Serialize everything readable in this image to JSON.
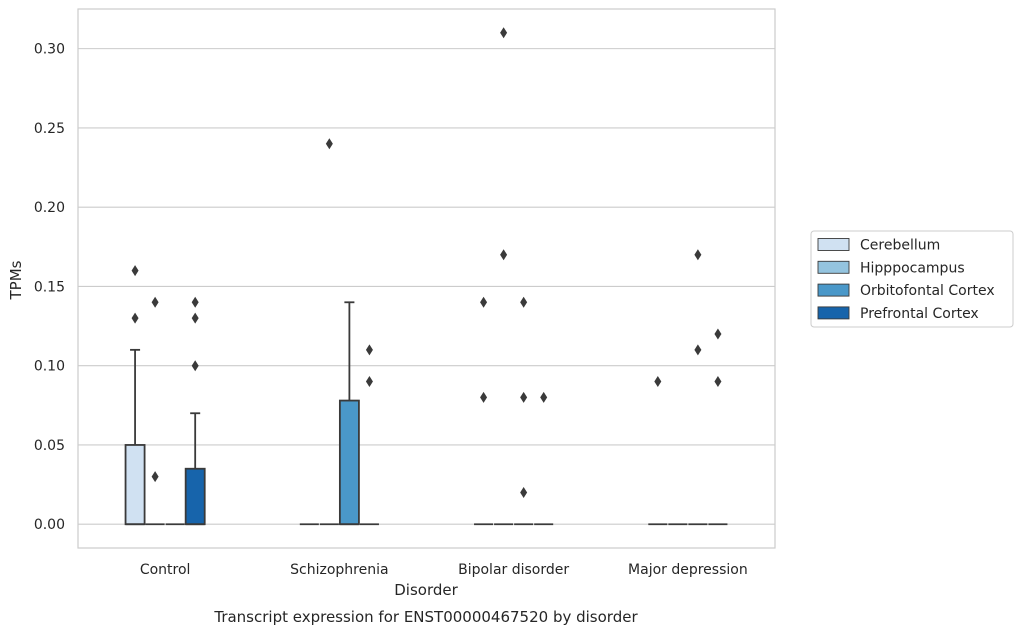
{
  "chart_data": {
    "type": "box",
    "title": "Transcript expression for ENST00000467520 by disorder",
    "xlabel": "Disorder",
    "ylabel": "TPMs",
    "ylim": [
      -0.015,
      0.325
    ],
    "yticks": [
      0.0,
      0.05,
      0.1,
      0.15,
      0.2,
      0.25,
      0.3
    ],
    "ytick_labels": [
      "0.00",
      "0.05",
      "0.10",
      "0.15",
      "0.20",
      "0.25",
      "0.30"
    ],
    "grid": "horizontal",
    "legend_position": "right",
    "categories": [
      "Control",
      "Schizophrenia",
      "Bipolar disorder",
      "Major depression"
    ],
    "series": [
      {
        "name": "Cerebellum",
        "color": "#d0e1f2",
        "boxes": [
          {
            "q1": 0.0,
            "median": 0.0,
            "q3": 0.05,
            "whisker_low": 0.0,
            "whisker_high": 0.11,
            "outliers": [
              0.13,
              0.16
            ]
          },
          {
            "q1": 0.0,
            "median": 0.0,
            "q3": 0.0,
            "whisker_low": 0.0,
            "whisker_high": 0.0,
            "outliers": []
          },
          {
            "q1": 0.0,
            "median": 0.0,
            "q3": 0.0,
            "whisker_low": 0.0,
            "whisker_high": 0.0,
            "outliers": [
              0.14,
              0.08
            ]
          },
          {
            "q1": 0.0,
            "median": 0.0,
            "q3": 0.0,
            "whisker_low": 0.0,
            "whisker_high": 0.0,
            "outliers": [
              0.09
            ]
          }
        ]
      },
      {
        "name": "Hipppocampus",
        "color": "#94c4df",
        "boxes": [
          {
            "q1": 0.0,
            "median": 0.0,
            "q3": 0.0,
            "whisker_low": 0.0,
            "whisker_high": 0.0,
            "outliers": [
              0.14,
              0.03
            ]
          },
          {
            "q1": 0.0,
            "median": 0.0,
            "q3": 0.0,
            "whisker_low": 0.0,
            "whisker_high": 0.0,
            "outliers": [
              0.24
            ]
          },
          {
            "q1": 0.0,
            "median": 0.0,
            "q3": 0.0,
            "whisker_low": 0.0,
            "whisker_high": 0.0,
            "outliers": [
              0.31,
              0.17
            ]
          },
          {
            "q1": 0.0,
            "median": 0.0,
            "q3": 0.0,
            "whisker_low": 0.0,
            "whisker_high": 0.0,
            "outliers": []
          }
        ]
      },
      {
        "name": "Orbitofontal Cortex",
        "color": "#4a98c9",
        "boxes": [
          {
            "q1": 0.0,
            "median": 0.0,
            "q3": 0.0,
            "whisker_low": 0.0,
            "whisker_high": 0.0,
            "outliers": []
          },
          {
            "q1": 0.0,
            "median": 0.0,
            "q3": 0.078,
            "whisker_low": 0.0,
            "whisker_high": 0.14,
            "outliers": []
          },
          {
            "q1": 0.0,
            "median": 0.0,
            "q3": 0.0,
            "whisker_low": 0.0,
            "whisker_high": 0.0,
            "outliers": [
              0.14,
              0.08,
              0.02
            ]
          },
          {
            "q1": 0.0,
            "median": 0.0,
            "q3": 0.0,
            "whisker_low": 0.0,
            "whisker_high": 0.0,
            "outliers": [
              0.17,
              0.11
            ]
          }
        ]
      },
      {
        "name": "Prefrontal Cortex",
        "color": "#1764ab",
        "boxes": [
          {
            "q1": 0.0,
            "median": 0.0,
            "q3": 0.035,
            "whisker_low": 0.0,
            "whisker_high": 0.07,
            "outliers": [
              0.14,
              0.13,
              0.1
            ]
          },
          {
            "q1": 0.0,
            "median": 0.0,
            "q3": 0.0,
            "whisker_low": 0.0,
            "whisker_high": 0.0,
            "outliers": [
              0.11,
              0.09
            ]
          },
          {
            "q1": 0.0,
            "median": 0.0,
            "q3": 0.0,
            "whisker_low": 0.0,
            "whisker_high": 0.0,
            "outliers": [
              0.08
            ]
          },
          {
            "q1": 0.0,
            "median": 0.0,
            "q3": 0.0,
            "whisker_low": 0.0,
            "whisker_high": 0.0,
            "outliers": [
              0.12,
              0.09
            ]
          }
        ]
      }
    ]
  }
}
